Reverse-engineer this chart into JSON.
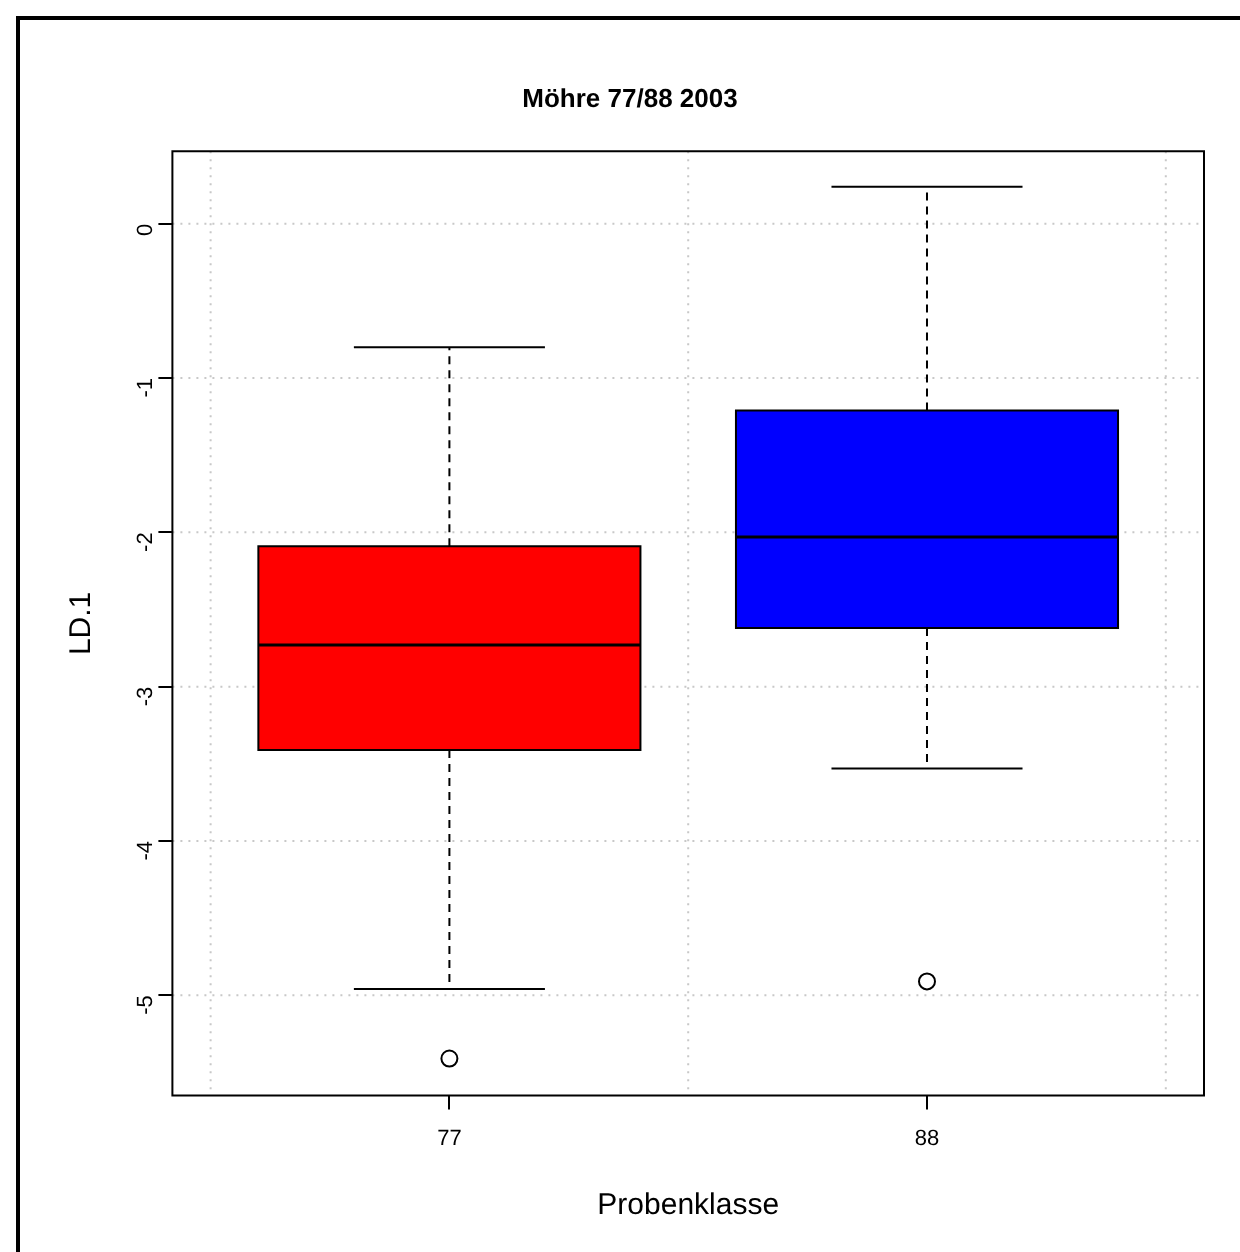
{
  "chart_data": {
    "type": "box",
    "title": "Möhre 77/88 2003",
    "xlabel": "Probenklasse",
    "ylabel": "LD.1",
    "categories": [
      "77",
      "88"
    ],
    "colors": [
      "#ff0000",
      "#0000ff"
    ],
    "boxes": [
      {
        "low": -4.96,
        "q1": -3.41,
        "median": -2.73,
        "q3": -2.09,
        "high": -0.8,
        "outliers": [
          -5.41
        ]
      },
      {
        "low": -3.53,
        "q1": -2.62,
        "median": -2.03,
        "q3": -1.21,
        "high": 0.24,
        "outliers": [
          -4.91
        ]
      }
    ],
    "ylim": [
      -5.65,
      0.47
    ],
    "yticks": [
      -5,
      -4,
      -3,
      -2,
      -1,
      0
    ],
    "grid": true
  }
}
